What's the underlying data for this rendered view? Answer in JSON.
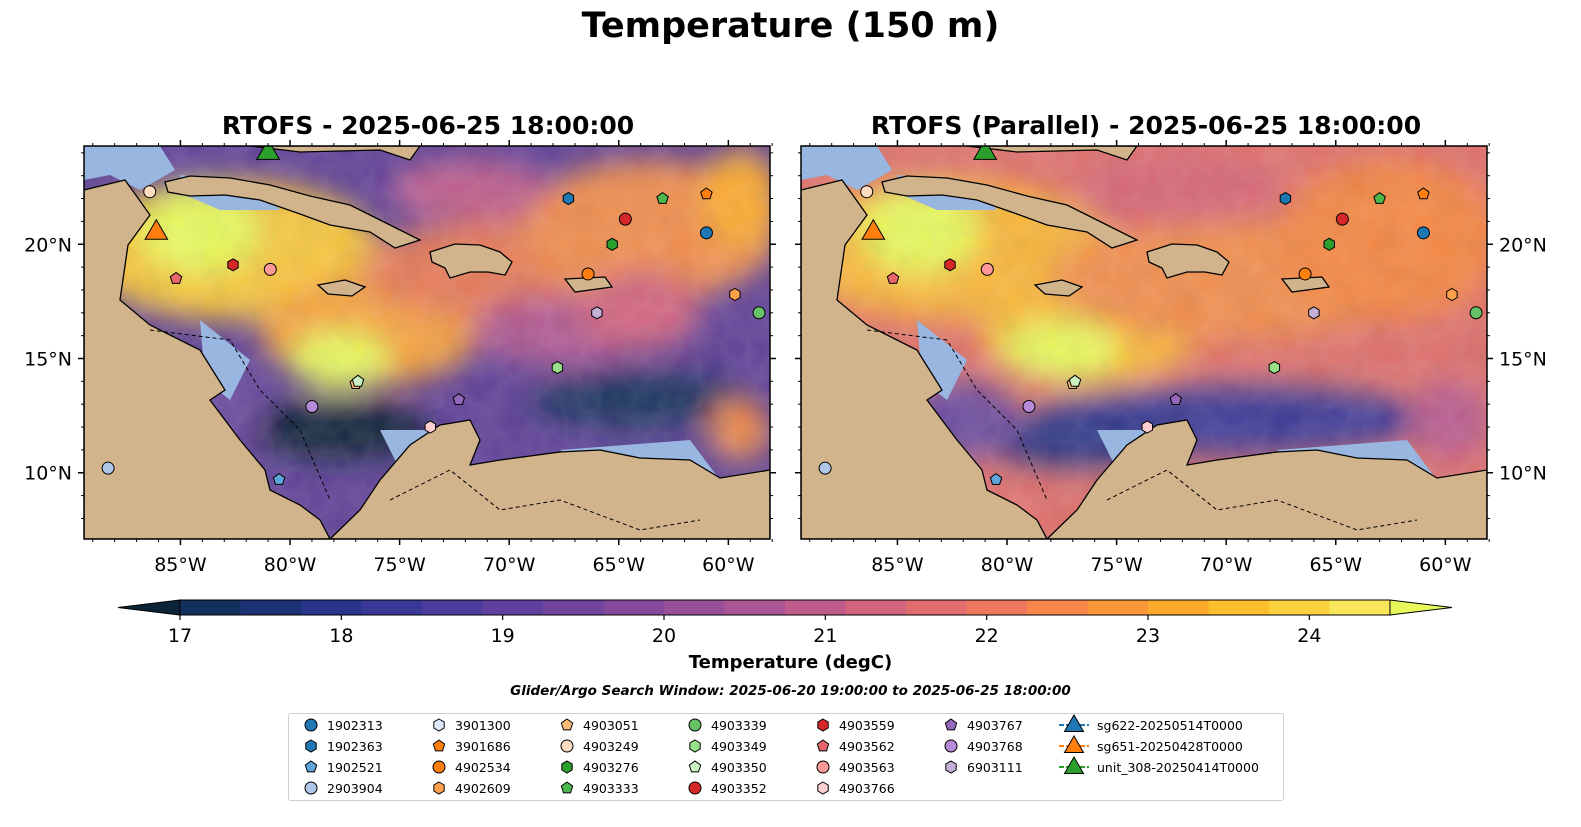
{
  "suptitle": "Temperature (150 m)",
  "maps": [
    {
      "title": "RTOFS - 2025-06-25 18:00:00"
    },
    {
      "title": "RTOFS (Parallel) - 2025-06-25 18:00:00"
    }
  ],
  "axes": {
    "x_ticks": [
      "85°W",
      "80°W",
      "75°W",
      "70°W",
      "65°W",
      "60°W"
    ],
    "y_ticks": [
      "20°N",
      "15°N",
      "10°N"
    ]
  },
  "colorbar": {
    "label": "Temperature (degC)",
    "ticks": [
      "17",
      "18",
      "19",
      "20",
      "21",
      "22",
      "23",
      "24"
    ],
    "min": 16.75,
    "max": 24.75,
    "colors": [
      "#0b2438",
      "#13305d",
      "#1d3275",
      "#28358a",
      "#3a3897",
      "#4d3c9d",
      "#5f409e",
      "#71459e",
      "#84499d",
      "#984f9a",
      "#ac5594",
      "#c05c8b",
      "#d2647f",
      "#e26d6f",
      "#ee785d",
      "#f6864a",
      "#fa9739",
      "#fcaa2d",
      "#fcbe2e",
      "#fbd23d",
      "#f7e55a",
      "#e8fa5b"
    ]
  },
  "search_window": "Glider/Argo Search Window: 2025-06-20 19:00:00 to 2025-06-25 18:00:00",
  "land_color": "#d2b48c",
  "shallow_color": "#98b6e0",
  "legend": [
    {
      "label": "1902313",
      "marker": "circle",
      "color": "#1f77b4"
    },
    {
      "label": "1902363",
      "marker": "hexagon",
      "color": "#1f77b4"
    },
    {
      "label": "1902521",
      "marker": "pentagon",
      "color": "#5ea5da"
    },
    {
      "label": "2903904",
      "marker": "circle",
      "color": "#aec7e8"
    },
    {
      "label": "3901300",
      "marker": "hexagon",
      "color": "#dbeafb"
    },
    {
      "label": "3901686",
      "marker": "pentagon",
      "color": "#ff7f0e"
    },
    {
      "label": "4902534",
      "marker": "circle",
      "color": "#ff7f0e"
    },
    {
      "label": "4902609",
      "marker": "hexagon",
      "color": "#ffa04a"
    },
    {
      "label": "4903051",
      "marker": "pentagon",
      "color": "#ffbb78"
    },
    {
      "label": "4903249",
      "marker": "circle",
      "color": "#ffdcc0"
    },
    {
      "label": "4903276",
      "marker": "hexagon",
      "color": "#2ca02c"
    },
    {
      "label": "4903333",
      "marker": "pentagon",
      "color": "#4cb84c"
    },
    {
      "label": "4903339",
      "marker": "circle",
      "color": "#66c266"
    },
    {
      "label": "4903349",
      "marker": "hexagon",
      "color": "#98df8a"
    },
    {
      "label": "4903350",
      "marker": "pentagon",
      "color": "#ccf2c4"
    },
    {
      "label": "4903352",
      "marker": "circle",
      "color": "#d62728"
    },
    {
      "label": "4903559",
      "marker": "hexagon",
      "color": "#d62728"
    },
    {
      "label": "4903562",
      "marker": "pentagon",
      "color": "#e8666c"
    },
    {
      "label": "4903563",
      "marker": "circle",
      "color": "#ff9896"
    },
    {
      "label": "4903766",
      "marker": "hexagon",
      "color": "#ffcfcf"
    },
    {
      "label": "4903767",
      "marker": "pentagon",
      "color": "#9467bd"
    },
    {
      "label": "4903768",
      "marker": "circle",
      "color": "#b68ad8"
    },
    {
      "label": "6903111",
      "marker": "hexagon",
      "color": "#c5b0d5"
    },
    {
      "label": "sg622-20250514T0000",
      "marker": "triangle-line",
      "color": "#1f77b4"
    },
    {
      "label": "sg651-20250428T0000",
      "marker": "triangle-line",
      "color": "#ff7f0e"
    },
    {
      "label": "unit_308-20250414T0000",
      "marker": "triangle-line",
      "color": "#2ca02c"
    }
  ],
  "observations": [
    {
      "id": "1902313",
      "lon": -61.0,
      "lat": 20.5
    },
    {
      "id": "1902363",
      "lon": -67.3,
      "lat": 22.0
    },
    {
      "id": "1902521",
      "lon": -80.5,
      "lat": 9.7
    },
    {
      "id": "2903904",
      "lon": -88.3,
      "lat": 10.2
    },
    {
      "id": "3901300",
      "lon": -86.4,
      "lat": 22.3
    },
    {
      "id": "3901686",
      "lon": -61.0,
      "lat": 22.2
    },
    {
      "id": "4902534",
      "lon": -66.4,
      "lat": 18.7
    },
    {
      "id": "4902609",
      "lon": -59.7,
      "lat": 17.8
    },
    {
      "id": "4903051",
      "lon": -77.0,
      "lat": 13.9
    },
    {
      "id": "4903249",
      "lon": -86.4,
      "lat": 22.3
    },
    {
      "id": "4903276",
      "lon": -65.3,
      "lat": 20.0
    },
    {
      "id": "4903333",
      "lon": -63.0,
      "lat": 22.0
    },
    {
      "id": "4903339",
      "lon": -58.6,
      "lat": 17.0
    },
    {
      "id": "4903349",
      "lon": -67.8,
      "lat": 14.6
    },
    {
      "id": "4903350",
      "lon": -76.9,
      "lat": 14.0
    },
    {
      "id": "4903352",
      "lon": -64.7,
      "lat": 21.1
    },
    {
      "id": "4903559",
      "lon": -82.6,
      "lat": 19.1
    },
    {
      "id": "4903562",
      "lon": -85.2,
      "lat": 18.5
    },
    {
      "id": "4903563",
      "lon": -80.9,
      "lat": 18.9
    },
    {
      "id": "4903766",
      "lon": -73.6,
      "lat": 12.0
    },
    {
      "id": "4903767",
      "lon": -72.3,
      "lat": 13.2
    },
    {
      "id": "4903768",
      "lon": -79.0,
      "lat": 12.9
    },
    {
      "id": "6903111",
      "lon": -66.0,
      "lat": 17.0
    },
    {
      "id": "sg651-20250428T0000",
      "lon": -86.1,
      "lat": 20.5
    },
    {
      "id": "unit_308-20250414T0000",
      "lon": -81.0,
      "lat": 24.0
    }
  ]
}
